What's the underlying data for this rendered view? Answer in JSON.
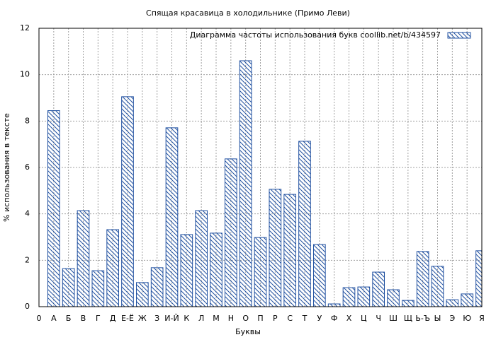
{
  "chart_data": {
    "type": "bar",
    "title": "Спящая красавица в холодильнике (Примо Леви)",
    "x_label": "Буквы",
    "y_label": "% использования в тексте",
    "categories": [
      "0",
      "А",
      "Б",
      "В",
      "Г",
      "Д",
      "Е-Ё",
      "Ж",
      "З",
      "И-Й",
      "К",
      "Л",
      "М",
      "Н",
      "О",
      "П",
      "Р",
      "С",
      "Т",
      "У",
      "Ф",
      "Х",
      "Ц",
      "Ч",
      "Ш",
      "Щ",
      "Ь-Ъ",
      "Ы",
      "Э",
      "Ю",
      "Я"
    ],
    "series": [
      {
        "name": "Диаграмма частоты использования букв  coollib.net/b/434597",
        "color": "#2050a0",
        "values": [
          null,
          8.45,
          1.64,
          4.14,
          1.55,
          3.32,
          9.05,
          1.04,
          1.68,
          7.71,
          3.11,
          4.14,
          3.17,
          6.37,
          10.6,
          2.98,
          5.06,
          4.84,
          7.13,
          2.68,
          0.12,
          0.82,
          0.85,
          1.49,
          0.73,
          0.27,
          2.38,
          1.74,
          0.3,
          0.55,
          2.41
        ]
      }
    ],
    "xlim": [
      0,
      30
    ],
    "ylim": [
      0,
      12
    ],
    "yticks": [
      0,
      2,
      4,
      6,
      8,
      10,
      12
    ],
    "grid": true,
    "legend_position": "top-right",
    "hatch": true
  }
}
